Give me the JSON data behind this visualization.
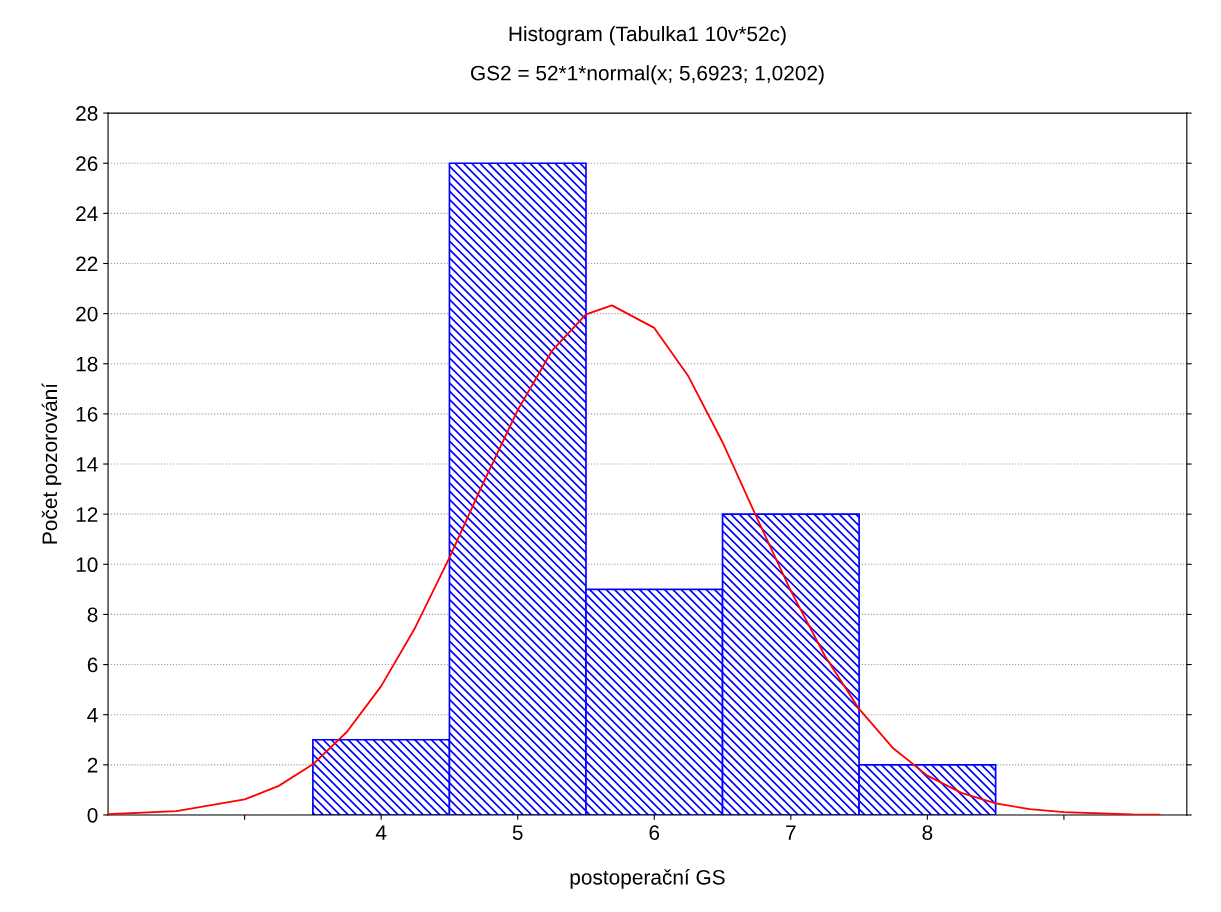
{
  "chart_data": {
    "type": "histogram",
    "title": "Histogram (Tabulka1 10v*52c)",
    "subtitle": "GS2 = 52*1*normal(x; 5,6923; 1,0202)",
    "xlabel": "postoperační GS",
    "ylabel": "Počet pozorování",
    "bins": [
      3.5,
      4.5,
      5.5,
      6.5,
      7.5,
      8.5
    ],
    "values": [
      3,
      26,
      9,
      12,
      2
    ],
    "color": "#0000ff",
    "series": [
      {
        "type": "line",
        "color": "#ff0000",
        "x": [
          2.0,
          2.5,
          3.0,
          3.25,
          3.5,
          3.75,
          4.0,
          4.25,
          4.5,
          4.75,
          5.0,
          5.25,
          5.5,
          5.69,
          6.0,
          6.25,
          6.5,
          6.75,
          7.0,
          7.25,
          7.5,
          7.75,
          8.0,
          8.25,
          8.5,
          8.75,
          9.0,
          9.5,
          9.7
        ],
        "values": [
          0.03,
          0.15,
          0.62,
          1.16,
          2.02,
          3.32,
          5.14,
          7.48,
          10.27,
          13.27,
          16.15,
          18.51,
          19.97,
          20.33,
          19.43,
          17.5,
          14.87,
          11.87,
          8.94,
          6.34,
          4.23,
          2.66,
          1.57,
          0.88,
          0.46,
          0.23,
          0.11,
          0.02,
          0.01
        ]
      }
    ],
    "xlim": [
      2,
      9.9
    ],
    "xticks": [
      {
        "value": 3,
        "label": null
      },
      4,
      5,
      6,
      7,
      8,
      {
        "value": 9,
        "label": null
      }
    ],
    "ylim": [
      0,
      28
    ],
    "yticks": [
      0,
      2,
      4,
      6,
      8,
      10,
      12,
      14,
      16,
      18,
      20,
      22,
      24,
      26,
      28
    ],
    "grid": "y",
    "legend": false
  }
}
